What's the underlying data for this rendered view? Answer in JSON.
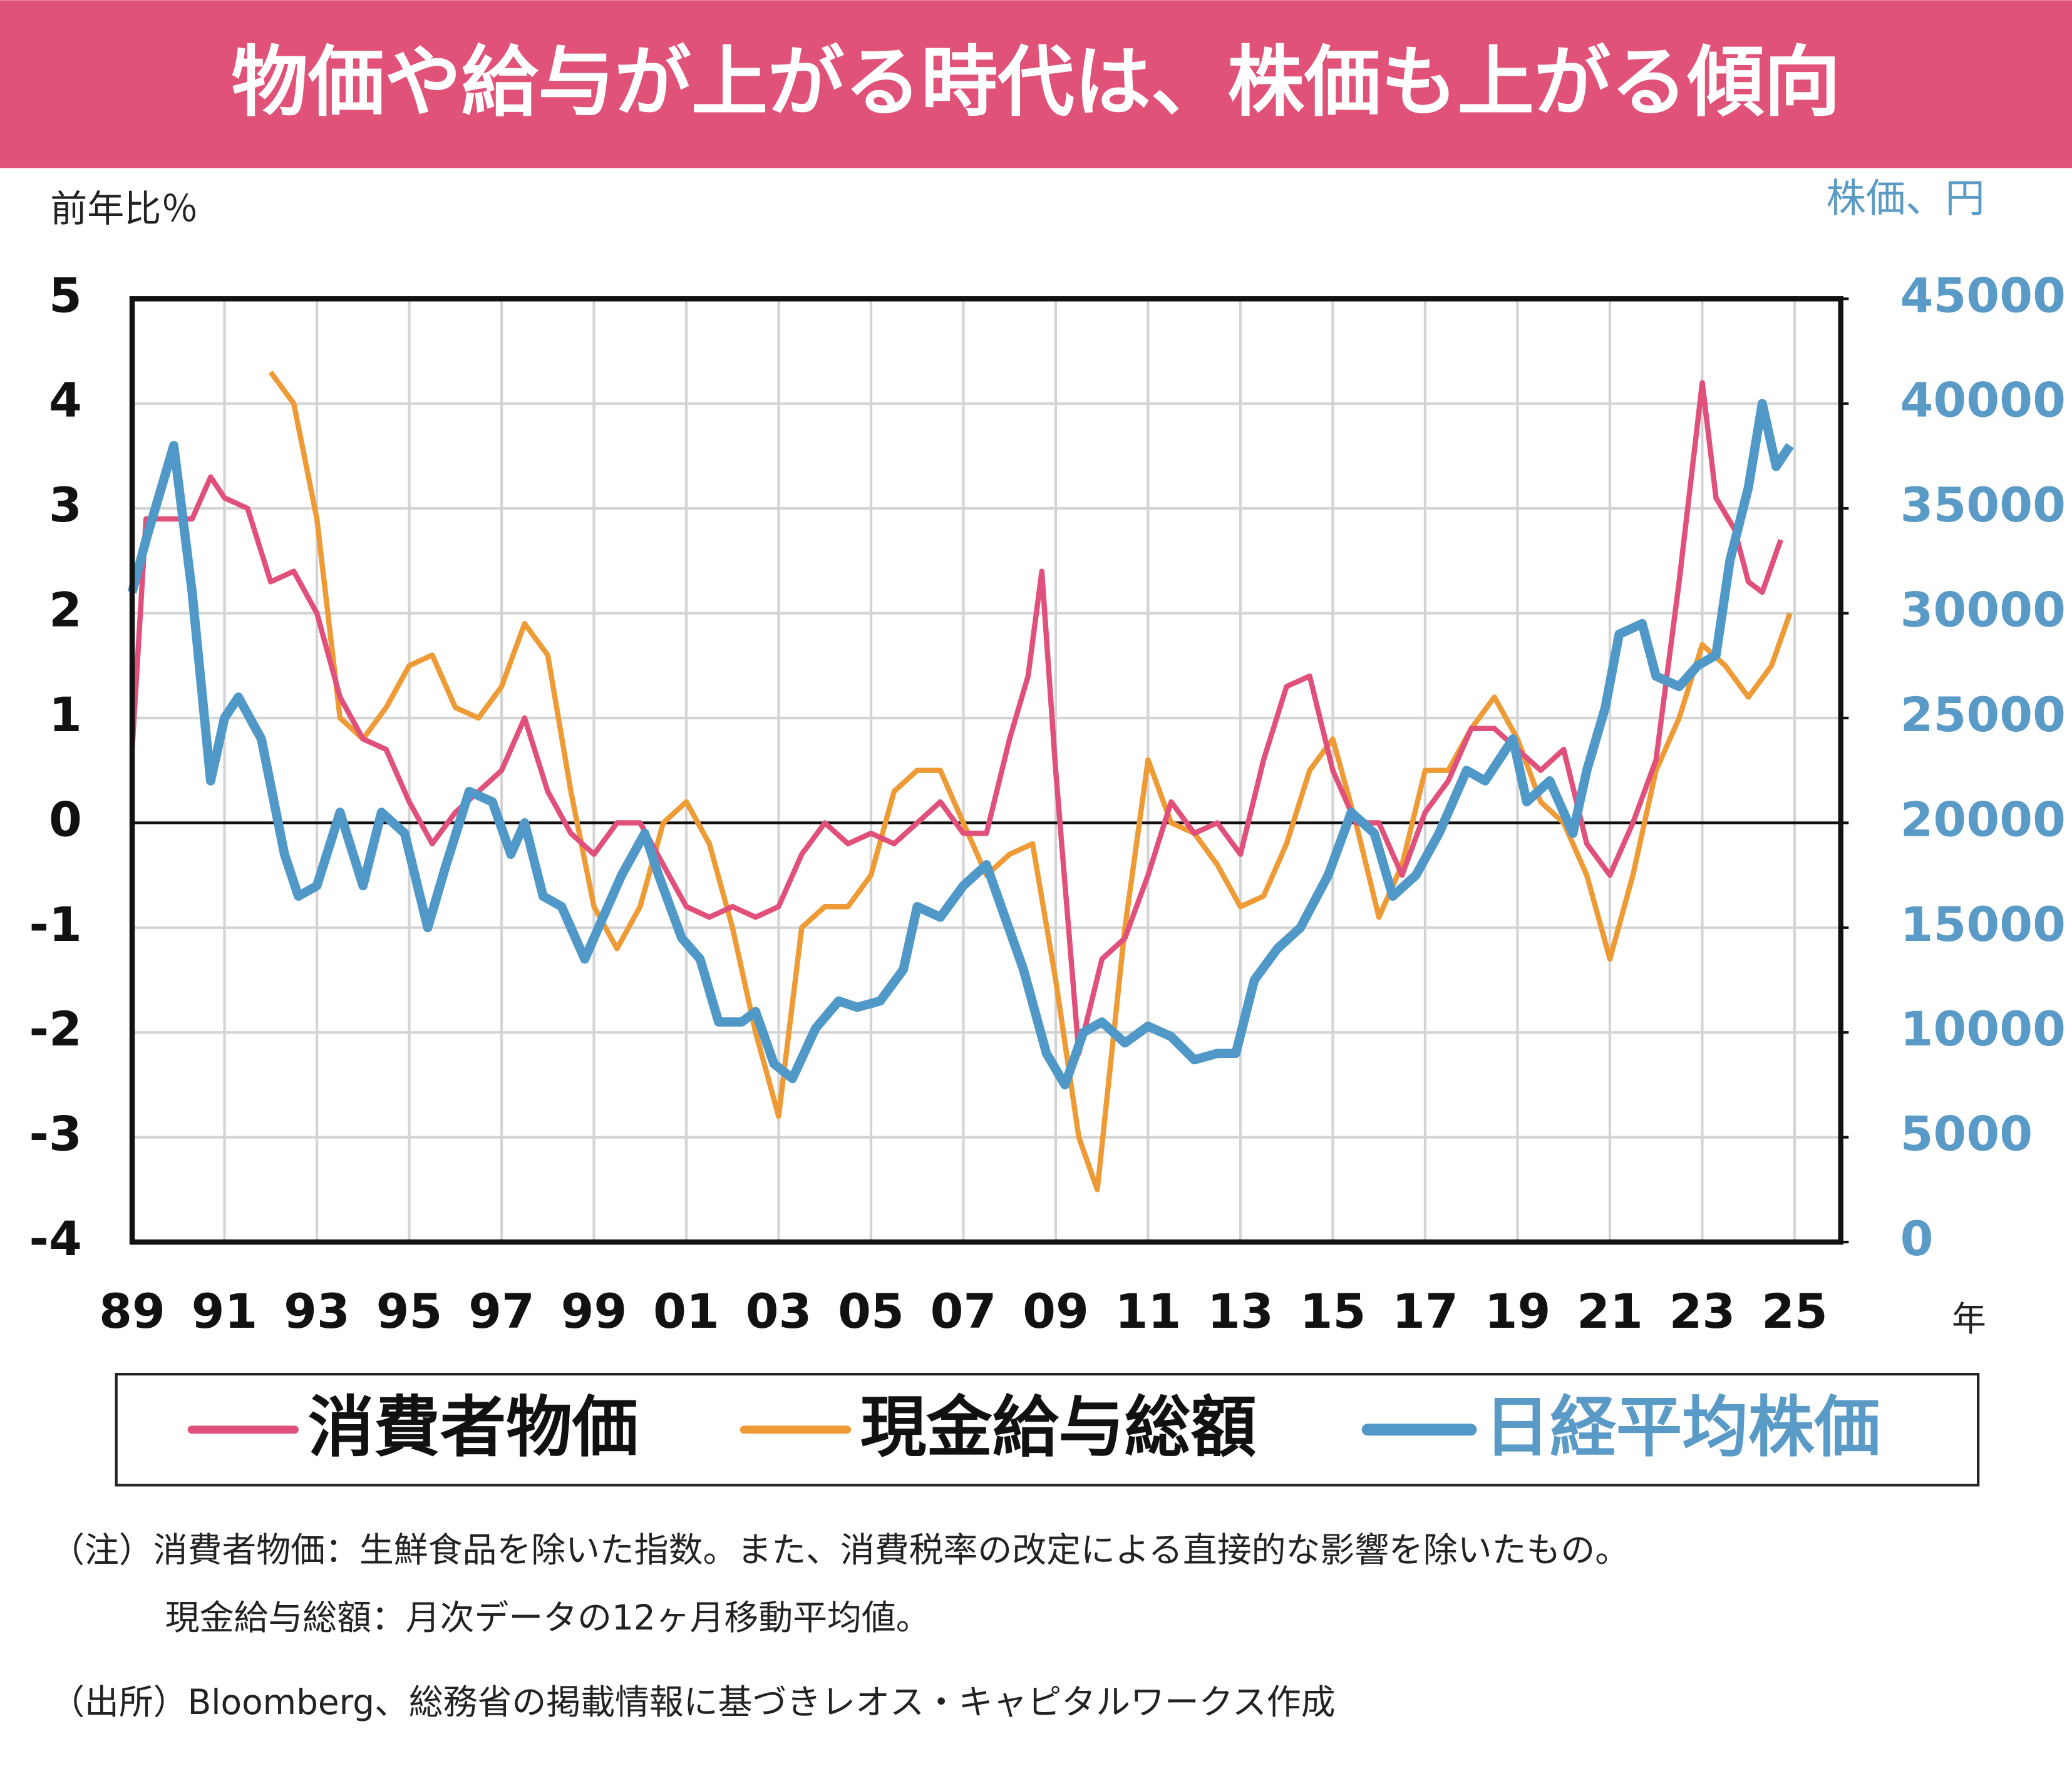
{
  "chart_data": {
    "type": "line",
    "title": "物価や給与が上がる時代は、株価も上がる傾向",
    "ylabel": "前年比％",
    "y2label": "株価、円",
    "xlabel": "年",
    "notes": [
      "（注）消費者物価：生鮮食品を除いた指数。また、消費税率の改定による直接的な影響を除いたもの。",
      "現金給与総額：月次データの12ヶ月移動平均値。",
      "（出所）Bloomberg、総務省の掲載情報に基づきレオス・キャピタルワークス作成"
    ],
    "xlim": [
      1989,
      2026
    ],
    "xticks": [
      {
        "value": 1989,
        "label": "89"
      },
      {
        "value": 1991,
        "label": "91"
      },
      {
        "value": 1993,
        "label": "93"
      },
      {
        "value": 1995,
        "label": "95"
      },
      {
        "value": 1997,
        "label": "97"
      },
      {
        "value": 1999,
        "label": "99"
      },
      {
        "value": 2001,
        "label": "01"
      },
      {
        "value": 2003,
        "label": "03"
      },
      {
        "value": 2005,
        "label": "05"
      },
      {
        "value": 2007,
        "label": "07"
      },
      {
        "value": 2009,
        "label": "09"
      },
      {
        "value": 2011,
        "label": "11"
      },
      {
        "value": 2013,
        "label": "13"
      },
      {
        "value": 2015,
        "label": "15"
      },
      {
        "value": 2017,
        "label": "17"
      },
      {
        "value": 2019,
        "label": "19"
      },
      {
        "value": 2021,
        "label": "21"
      },
      {
        "value": 2023,
        "label": "23"
      },
      {
        "value": 2025,
        "label": "25"
      }
    ],
    "ylim": [
      -4,
      5
    ],
    "yticks": [
      -4,
      -3,
      -2,
      -1,
      0,
      1,
      2,
      3,
      4,
      5
    ],
    "y2lim": [
      0,
      45000
    ],
    "y2ticks": [
      0,
      5000,
      10000,
      15000,
      20000,
      25000,
      30000,
      35000,
      40000,
      45000
    ],
    "grid": true,
    "series": [
      {
        "name": "消費者物価",
        "color": "#e0507a",
        "x": [
          1989.0,
          1989.3,
          1989.8,
          1990.3,
          1990.7,
          1991.0,
          1991.5,
          1992.0,
          1992.5,
          1993.0,
          1993.5,
          1994.0,
          1994.5,
          1995.0,
          1995.5,
          1996.0,
          1996.5,
          1997.0,
          1997.5,
          1998.0,
          1998.5,
          1999.0,
          1999.5,
          2000.0,
          2000.5,
          2001.0,
          2001.5,
          2002.0,
          2002.5,
          2003.0,
          2003.5,
          2004.0,
          2004.5,
          2005.0,
          2005.5,
          2006.0,
          2006.5,
          2007.0,
          2007.5,
          2008.0,
          2008.4,
          2008.7,
          2009.0,
          2009.5,
          2010.0,
          2010.5,
          2011.0,
          2011.5,
          2012.0,
          2012.5,
          2013.0,
          2013.5,
          2014.0,
          2014.5,
          2015.0,
          2015.5,
          2016.0,
          2016.5,
          2017.0,
          2017.5,
          2018.0,
          2018.5,
          2019.0,
          2019.5,
          2020.0,
          2020.5,
          2021.0,
          2021.5,
          2022.0,
          2022.5,
          2023.0,
          2023.3,
          2023.7,
          2024.0,
          2024.3,
          2024.7
        ],
        "values": [
          0.7,
          2.9,
          2.9,
          2.9,
          3.3,
          3.1,
          3.0,
          2.3,
          2.4,
          2.0,
          1.2,
          0.8,
          0.7,
          0.2,
          -0.2,
          0.1,
          0.3,
          0.5,
          1.0,
          0.3,
          -0.1,
          -0.3,
          0.0,
          0.0,
          -0.4,
          -0.8,
          -0.9,
          -0.8,
          -0.9,
          -0.8,
          -0.3,
          0.0,
          -0.2,
          -0.1,
          -0.2,
          0.0,
          0.2,
          -0.1,
          -0.1,
          0.8,
          1.4,
          2.4,
          0.5,
          -2.2,
          -1.3,
          -1.1,
          -0.5,
          0.2,
          -0.1,
          0.0,
          -0.3,
          0.6,
          1.3,
          1.4,
          0.5,
          0.0,
          0.0,
          -0.5,
          0.1,
          0.4,
          0.9,
          0.9,
          0.7,
          0.5,
          0.7,
          -0.2,
          -0.5,
          0.0,
          0.6,
          2.3,
          4.2,
          3.1,
          2.8,
          2.3,
          2.2,
          2.7
        ]
      },
      {
        "name": "現金給与総額",
        "color": "#ee9a35",
        "x": [
          1992.0,
          1992.5,
          1993.0,
          1993.5,
          1994.0,
          1994.5,
          1995.0,
          1995.5,
          1996.0,
          1996.5,
          1997.0,
          1997.5,
          1998.0,
          1998.5,
          1999.0,
          1999.5,
          2000.0,
          2000.5,
          2001.0,
          2001.5,
          2002.0,
          2002.5,
          2003.0,
          2003.5,
          2004.0,
          2004.5,
          2005.0,
          2005.5,
          2006.0,
          2006.5,
          2007.0,
          2007.5,
          2008.0,
          2008.5,
          2009.0,
          2009.5,
          2009.9,
          2010.5,
          2011.0,
          2011.5,
          2012.0,
          2012.5,
          2013.0,
          2013.5,
          2014.0,
          2014.5,
          2015.0,
          2015.5,
          2016.0,
          2016.5,
          2017.0,
          2017.5,
          2018.0,
          2018.5,
          2019.0,
          2019.5,
          2020.0,
          2020.5,
          2021.0,
          2021.5,
          2022.0,
          2022.5,
          2023.0,
          2023.5,
          2024.0,
          2024.5,
          2024.9
        ],
        "values": [
          4.3,
          4.0,
          2.9,
          1.0,
          0.8,
          1.1,
          1.5,
          1.6,
          1.1,
          1.0,
          1.3,
          1.9,
          1.6,
          0.3,
          -0.8,
          -1.2,
          -0.8,
          0.0,
          0.2,
          -0.2,
          -1.0,
          -2.0,
          -2.8,
          -1.0,
          -0.8,
          -0.8,
          -0.5,
          0.3,
          0.5,
          0.5,
          0.0,
          -0.5,
          -0.3,
          -0.2,
          -1.5,
          -3.0,
          -3.5,
          -1.0,
          0.6,
          0.0,
          -0.1,
          -0.4,
          -0.8,
          -0.7,
          -0.2,
          0.5,
          0.8,
          0.0,
          -0.9,
          -0.4,
          0.5,
          0.5,
          0.9,
          1.2,
          0.8,
          0.2,
          0.0,
          -0.5,
          -1.3,
          -0.5,
          0.5,
          1.0,
          1.7,
          1.5,
          1.2,
          1.5,
          2.0
        ]
      },
      {
        "name": "日経平均株価",
        "color": "#4f98c8",
        "axis": "y2",
        "x": [
          1989.0,
          1989.3,
          1989.9,
          1990.3,
          1990.7,
          1991.0,
          1991.3,
          1991.8,
          1992.3,
          1992.6,
          1993.0,
          1993.5,
          1994.0,
          1994.4,
          1994.9,
          1995.4,
          1995.8,
          1996.3,
          1996.8,
          1997.2,
          1997.5,
          1997.9,
          1998.3,
          1998.8,
          1999.2,
          1999.6,
          2000.1,
          2000.4,
          2000.9,
          2001.3,
          2001.7,
          2002.2,
          2002.5,
          2002.9,
          2003.3,
          2003.8,
          2004.3,
          2004.7,
          2005.2,
          2005.7,
          2006.0,
          2006.5,
          2007.0,
          2007.5,
          2007.9,
          2008.3,
          2008.8,
          2009.2,
          2009.6,
          2010.0,
          2010.5,
          2011.0,
          2011.5,
          2012.0,
          2012.5,
          2012.9,
          2013.3,
          2013.8,
          2014.3,
          2014.9,
          2015.4,
          2015.9,
          2016.3,
          2016.8,
          2017.3,
          2017.9,
          2018.3,
          2018.9,
          2019.2,
          2019.7,
          2020.2,
          2020.5,
          2020.9,
          2021.2,
          2021.7,
          2022.0,
          2022.5,
          2022.9,
          2023.3,
          2023.6,
          2024.0,
          2024.3,
          2024.6,
          2024.9
        ],
        "values": [
          31000,
          33500,
          38000,
          31000,
          22000,
          25000,
          26000,
          24000,
          18500,
          16500,
          17000,
          20500,
          17000,
          20500,
          19500,
          15000,
          18000,
          21500,
          21000,
          18500,
          20000,
          16500,
          16000,
          13500,
          15500,
          17500,
          19500,
          17500,
          14500,
          13500,
          10500,
          10500,
          11000,
          8500,
          7800,
          10200,
          11500,
          11200,
          11500,
          13000,
          16000,
          15500,
          17000,
          18000,
          15500,
          13000,
          9000,
          7500,
          10000,
          10500,
          9500,
          10300,
          9800,
          8700,
          9000,
          9000,
          12500,
          14000,
          15000,
          17500,
          20500,
          19500,
          16500,
          17500,
          19500,
          22500,
          22000,
          24000,
          21000,
          22000,
          19500,
          22500,
          25500,
          29000,
          29500,
          27000,
          26500,
          27500,
          28000,
          32500,
          36000,
          40000,
          37000,
          38000
        ]
      }
    ]
  }
}
